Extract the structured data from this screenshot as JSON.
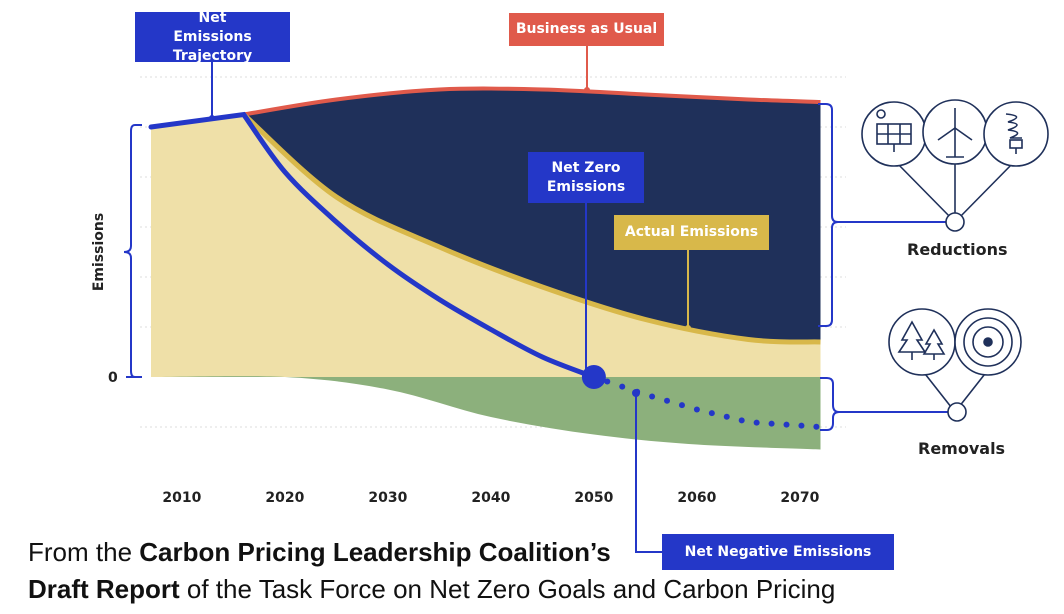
{
  "chart_data": {
    "type": "area",
    "x_ticks": [
      "2010",
      "2020",
      "2030",
      "2040",
      "2050",
      "2060",
      "2070"
    ],
    "xlim": [
      2007,
      2072
    ],
    "ylabel": "Emissions",
    "y_tick_zero": "0",
    "series": [
      {
        "name": "Business as Usual",
        "color": "#e05a4b",
        "x": [
          2007,
          2016,
          2025,
          2035,
          2045,
          2055,
          2065,
          2072
        ],
        "y": [
          100,
          105,
          111,
          115,
          115,
          113,
          111,
          110
        ]
      },
      {
        "name": "Net Emissions Trajectory",
        "color": "#2437c8",
        "x": [
          2007,
          2016,
          2020,
          2025,
          2030,
          2035,
          2040,
          2045,
          2050
        ],
        "y": [
          100,
          105,
          82,
          62,
          45,
          31,
          19,
          8,
          0
        ]
      },
      {
        "name": "Actual Emissions",
        "color": "#d8b84a",
        "x": [
          2016,
          2025,
          2035,
          2045,
          2055,
          2065,
          2072
        ],
        "y": [
          105,
          72,
          52,
          36,
          23,
          15,
          14
        ]
      },
      {
        "name": "Net Negative Emissions",
        "color": "#2437c8",
        "x": [
          2050,
          2055,
          2060,
          2065,
          2072
        ],
        "y": [
          0,
          -7,
          -13,
          -18,
          -20
        ]
      },
      {
        "name": "Removals",
        "color": "#8cb07c",
        "x": [
          2007,
          2020,
          2030,
          2040,
          2050,
          2060,
          2072
        ],
        "y": [
          0,
          0,
          -5,
          -16,
          -23,
          -27,
          -29
        ]
      }
    ]
  },
  "labels": {
    "net_emissions_trajectory": "Net Emissions Trajectory",
    "business_as_usual": "Business as Usual",
    "net_zero": "Net Zero Emissions",
    "actual_emissions": "Actual Emissions",
    "net_negative": "Net Negative Emissions",
    "reductions": "Reductions",
    "removals": "Removals"
  },
  "icons": {
    "reductions": [
      "solar-panel-icon",
      "wind-turbine-icon",
      "light-bulb-icon"
    ],
    "removals": [
      "trees-icon",
      "turbine-fan-icon"
    ]
  },
  "caption": {
    "line1_prefix": "From the ",
    "line1_bold": "Carbon Pricing Leadership Coalition’s",
    "line2_bold": "Draft Report",
    "line2_suffix": " of the Task Force on Net Zero Goals and Carbon Pricing"
  },
  "colors": {
    "navy": "#1f305a",
    "yellow_fill": "#efe0a8",
    "green_fill": "#8cb07c",
    "blue": "#2437c8",
    "red": "#e05a4b",
    "gold": "#d8b84a"
  }
}
